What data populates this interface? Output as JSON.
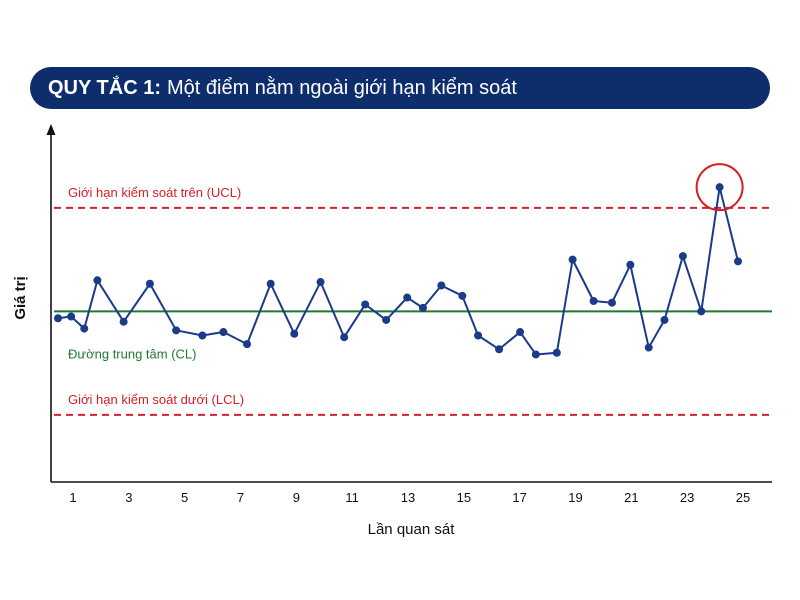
{
  "banner": {
    "rule_label": "QUY TẮC 1:",
    "description": "Một điểm nằm ngoài giới hạn kiểm soát"
  },
  "colors": {
    "banner_bg": "#0d2d6c",
    "series": "#1b3a8a",
    "control_limit": "#d42027",
    "center_line": "#1f7a2e",
    "highlight_circle": "#d42027"
  },
  "chart_data": {
    "type": "line",
    "title": "QUY TẮC 1: Một điểm nằm ngoài giới hạn kiểm soát",
    "xlabel": "Lần quan sát",
    "ylabel": "Giá trị",
    "x_ticks": [
      1,
      3,
      5,
      7,
      9,
      11,
      13,
      15,
      17,
      19,
      21,
      23,
      25
    ],
    "xlim": [
      0.3,
      26.2
    ],
    "ylim": [
      -4.6,
      5.2
    ],
    "grid": false,
    "ucl": {
      "value": 3,
      "label": "Giới hạn kiểm soát trên (UCL)"
    },
    "cl": {
      "value": 0,
      "label": "Đường trung tâm (CL)"
    },
    "lcl": {
      "value": -3,
      "label": "Giới hạn kiểm soát dưới (LCL)"
    },
    "series": [
      {
        "points": [
          [
            0.3,
            -0.2
          ],
          [
            0.8,
            -0.15
          ],
          [
            1.3,
            -0.5
          ],
          [
            1.8,
            0.9
          ],
          [
            2.8,
            -0.3
          ],
          [
            3.8,
            0.8
          ],
          [
            4.8,
            -0.55
          ],
          [
            5.8,
            -0.7
          ],
          [
            6.6,
            -0.6
          ],
          [
            7.5,
            -0.95
          ],
          [
            8.4,
            0.8
          ],
          [
            9.3,
            -0.65
          ],
          [
            10.3,
            0.85
          ],
          [
            11.2,
            -0.75
          ],
          [
            12.0,
            0.2
          ],
          [
            12.8,
            -0.25
          ],
          [
            13.6,
            0.4
          ],
          [
            14.2,
            0.1
          ],
          [
            14.9,
            0.75
          ],
          [
            15.7,
            0.45
          ],
          [
            16.3,
            -0.7
          ],
          [
            17.1,
            -1.1
          ],
          [
            17.9,
            -0.6
          ],
          [
            18.5,
            -1.25
          ],
          [
            19.3,
            -1.2
          ],
          [
            19.9,
            1.5
          ],
          [
            20.7,
            0.3
          ],
          [
            21.4,
            0.25
          ],
          [
            22.1,
            1.35
          ],
          [
            22.8,
            -1.05
          ],
          [
            23.4,
            -0.25
          ],
          [
            24.1,
            1.6
          ],
          [
            24.8,
            0.0
          ],
          [
            25.5,
            3.6
          ],
          [
            26.2,
            1.45
          ]
        ]
      }
    ],
    "highlighted_point": [
      25.5,
      3.6
    ]
  }
}
